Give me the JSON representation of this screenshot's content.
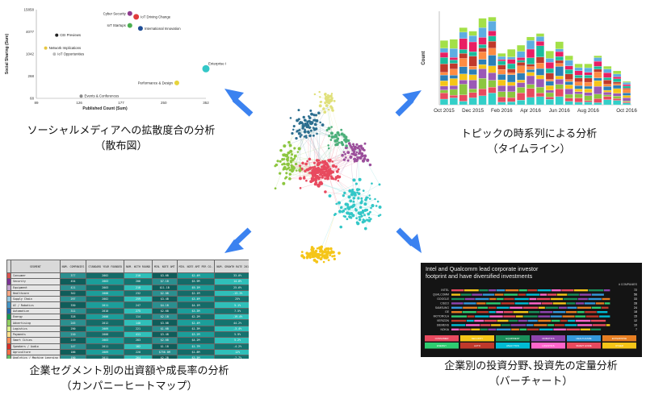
{
  "captions": {
    "scatter_line1": "ソーシャルメディアへの拡散度合の分析",
    "scatter_line2": "（散布図）",
    "timeline_line1": "トピックの時系列による分析",
    "timeline_line2": "（タイムライン）",
    "heatmap_line1": "企業セグメント別の出資額や成長率の分析",
    "heatmap_line2": "（カンパニーヒートマップ）",
    "bars_line1": "企業別の投資分野､投資先の定量分析",
    "bars_line2": "（バーチャート）"
  },
  "arrow_color": "#3b82f0",
  "chart_data": [
    {
      "type": "scatter",
      "xlabel": "Published Count (Sum)",
      "ylabel": "Social Sharing (Sum)",
      "x_ticks": [
        "89",
        "126",
        "177",
        "250",
        "352"
      ],
      "y_ticks": [
        "15858",
        "4077",
        "1042",
        "268",
        "68"
      ],
      "log_scale": true,
      "xlim": [
        89,
        352
      ],
      "ylim": [
        68,
        15858
      ],
      "points": [
        {
          "label": "Cyber Security",
          "x": 190,
          "y": 12500,
          "color": "#8e3a8e",
          "size": 3
        },
        {
          "label": "IoT Driving Change",
          "x": 200,
          "y": 10200,
          "color": "#e03c3c",
          "size": 3.5
        },
        {
          "label": "IoT Startups",
          "x": 190,
          "y": 6000,
          "color": "#4caf50",
          "size": 3
        },
        {
          "label": "International Innovation",
          "x": 207,
          "y": 5000,
          "color": "#1f4e96",
          "size": 3
        },
        {
          "label": "CEI Previews",
          "x": 105,
          "y": 3300,
          "color": "#222222",
          "size": 2
        },
        {
          "label": "Network Implications",
          "x": 96,
          "y": 1500,
          "color": "#e6c640",
          "size": 2
        },
        {
          "label": "IoT Opportunities",
          "x": 103,
          "y": 1030,
          "color": "#bbbbbb",
          "size": 2
        },
        {
          "label": "Enterprise Capabilities",
          "x": 352,
          "y": 420,
          "color": "#33c7c7",
          "size": 4.5
        },
        {
          "label": "Performance & Design",
          "x": 278,
          "y": 175,
          "color": "#e6d43c",
          "size": 3
        },
        {
          "label": "Events & Conferences",
          "x": 128,
          "y": 78,
          "color": "#888888",
          "size": 2
        }
      ]
    },
    {
      "type": "bar",
      "stacked": true,
      "ylabel": "Count",
      "x_labels": [
        "Oct 2015",
        "Dec 2015",
        "Feb 2016",
        "Apr 2016",
        "Jun 2016",
        "Aug 2016",
        "Oct 2016"
      ],
      "colors": [
        "#33cfc8",
        "#e84a5f",
        "#8cc63f",
        "#9b59b6",
        "#f5c518",
        "#2c7fb8",
        "#ff8c42",
        "#c0392b",
        "#1abc9c",
        "#e91e63",
        "#5dade2",
        "#a3e048"
      ],
      "totals": [
        110,
        112,
        132,
        126,
        148,
        150,
        88,
        95,
        102,
        116,
        122,
        92,
        108,
        84,
        70,
        70,
        84,
        66,
        58,
        40
      ]
    },
    {
      "type": "table",
      "title": "",
      "columns": [
        "SEGMENT",
        "NUM. COMPANIES",
        "STANDARD YEAR FOUNDED",
        "NUM. WITH ROUND",
        "MIN. NOTE AMT",
        "MIN. NOTE AMT PER CO.",
        "NUM. GROWTH RATE 2015-2016"
      ],
      "rows": [
        {
          "segment": "Consumer",
          "color": "#d9534f",
          "cells": [
            "377",
            "2002",
            "210",
            "$3.6B",
            "$2.4M",
            "33.0%"
          ]
        },
        {
          "segment": "Security",
          "color": "#7b3294",
          "cells": [
            "454",
            "2003",
            "206",
            "$7.1B",
            "$5.9M",
            "14.8%"
          ]
        },
        {
          "segment": "Equipment",
          "color": "#c2a5cf",
          "cells": [
            "421",
            "2003",
            "218",
            "$11.1B",
            "$9.1M",
            "25.6%"
          ]
        },
        {
          "segment": "Healthcare",
          "color": "#f4a582",
          "cells": [
            "342",
            "2008",
            "232",
            "$2.0B",
            "$2.1M",
            "-13.1%"
          ]
        },
        {
          "segment": "Supply Chain",
          "color": "#92c5de",
          "cells": [
            "297",
            "2002",
            "259",
            "$3.4B",
            "$3.4M",
            "25%"
          ]
        },
        {
          "segment": "AI / Robotics",
          "color": "#4393c3",
          "cells": [
            "330",
            "2011",
            "247",
            "$4.1B",
            "$4.1M",
            "5.1%"
          ]
        },
        {
          "segment": "Automotive",
          "color": "#2166ac",
          "cells": [
            "311",
            "2010",
            "275",
            "$2.6B",
            "$3.3M",
            "7.5%"
          ]
        },
        {
          "segment": "Energy",
          "color": "#1a9850",
          "cells": [
            "328",
            "2006",
            "114",
            "$2.1B",
            "$2.2M",
            "-19.4%"
          ]
        },
        {
          "segment": "Advertising",
          "color": "#91cf60",
          "cells": [
            "245",
            "2012",
            "140",
            "$3.0B",
            "$2.4M",
            "44.2%"
          ]
        },
        {
          "segment": "Logistics",
          "color": "#d9ef8b",
          "cells": [
            "290",
            "2009",
            "221",
            "$1.6B",
            "$1.3M",
            "-3.4%"
          ]
        },
        {
          "segment": "Payments",
          "color": "#fee08b",
          "cells": [
            "210",
            "2008",
            "411",
            "$3.4B",
            "$3.2M",
            "5.9%"
          ]
        },
        {
          "segment": "Smart Cities",
          "color": "#fc8d59",
          "cells": [
            "219",
            "2003",
            "283",
            "$2.6B",
            "$4.2M",
            "5.2%"
          ]
        },
        {
          "segment": "Speakers / Audio",
          "color": "#d73027",
          "cells": [
            "147",
            "2011",
            "182",
            "$1.1B",
            "$1.7M",
            "-4.2%"
          ]
        },
        {
          "segment": "Agriculture",
          "color": "#f46d43",
          "cells": [
            "186",
            "2009",
            "220",
            "$756.0M",
            "$1.8M",
            "12%"
          ]
        },
        {
          "segment": "Analytics / Machine Learning",
          "color": "#66bd63",
          "cells": [
            "190",
            "2011",
            "264",
            "$2.2B",
            "$3.5M",
            "-7.7%"
          ]
        },
        {
          "segment": "Smart Home",
          "color": "#3288bd",
          "cells": [
            "231",
            "2009",
            "226",
            "$1.8B",
            "$1.2M",
            "3.5%"
          ]
        },
        {
          "segment": "Mobile App Development",
          "color": "#5e4fa2",
          "cells": [
            "174",
            "2010",
            "187",
            "$1.1B",
            "$0.9M",
            "17.9%"
          ]
        },
        {
          "segment": "Location Based / GPS",
          "color": "#00bcd4",
          "cells": [
            "67",
            "2004",
            "133",
            "$1.3B",
            "$12.4M",
            "-30.1%"
          ]
        }
      ]
    },
    {
      "type": "bar",
      "title": "Intel and Qualcomm lead corporate investor footprint and have diversified investments",
      "legend_header": "# COMPANIES",
      "categories": [
        "INTEL",
        "QUALCOMM",
        "GOOGLE",
        "CISCO",
        "SAMSUNG",
        "GE",
        "MOTOROLA",
        "VERIZON",
        "SIEMENS",
        "NOKIA"
      ],
      "values": [
        72,
        56,
        33,
        28,
        24,
        18,
        15,
        12,
        10,
        7
      ],
      "segment_colors": [
        "#e84a5f",
        "#f5c518",
        "#1a8f5a",
        "#8e44ad",
        "#3498db",
        "#e67e22",
        "#2ecc71",
        "#c0392b",
        "#00bcd4",
        "#ff66cc"
      ],
      "legend": [
        "CONSUMER",
        "SECURITY",
        "EQUIPMENT",
        "ROBOTICS",
        "HEALTHCARE",
        "ENTERPRISE",
        "ENERGY",
        "AUTO",
        "ANALYTICS",
        "LOGISTICS",
        "SMART HOME",
        "OTHER"
      ]
    }
  ]
}
